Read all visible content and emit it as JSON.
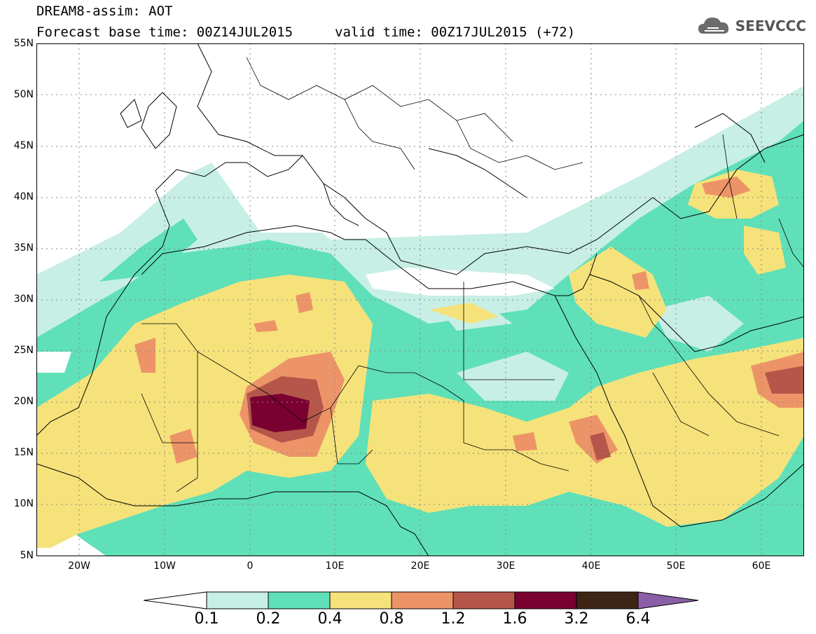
{
  "header": {
    "title_line1": "DREAM8-assim: AOT",
    "title_line2": "Forecast base time: 00Z14JUL2015",
    "valid_time": "valid time: 00Z17JUL2015 (+72)",
    "logo_text": "SEEVCCC"
  },
  "map": {
    "lat_labels": [
      "55N",
      "50N",
      "45N",
      "40N",
      "35N",
      "30N",
      "25N",
      "20N",
      "15N",
      "10N",
      "5N"
    ],
    "lon_labels": [
      "20W",
      "10W",
      "0",
      "10E",
      "20E",
      "30E",
      "40E",
      "50E",
      "60E"
    ],
    "lat_range": [
      5,
      55
    ],
    "lon_range": [
      -25,
      65
    ]
  },
  "colorbar": {
    "labels": [
      "0.1",
      "0.2",
      "0.4",
      "0.8",
      "1.2",
      "1.6",
      "3.2",
      "6.4"
    ],
    "colors": [
      "#ffffff",
      "#c7efe5",
      "#5fe0b8",
      "#f6e27a",
      "#ec9468",
      "#b5564a",
      "#7a0030",
      "#3d2414",
      "#8a5fa8"
    ]
  },
  "colors": {
    "very_low": "#c7efe5",
    "low": "#5fe0b8",
    "medium": "#f6e27a",
    "high": "#ec9468",
    "higher": "#b5564a",
    "very_high": "#7a0030"
  }
}
